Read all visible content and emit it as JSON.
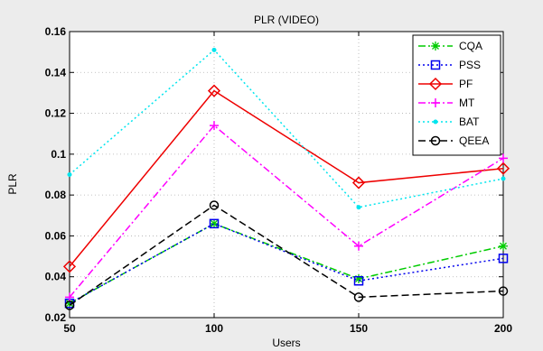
{
  "chart_data": {
    "type": "line",
    "title": "PLR (VIDEO)",
    "xlabel": "Users",
    "ylabel": "PLR",
    "x": [
      50,
      100,
      150,
      200
    ],
    "xlim": [
      50,
      200
    ],
    "ylim": [
      0.02,
      0.16
    ],
    "xticks": [
      "50",
      "100",
      "150",
      "200"
    ],
    "yticks": [
      "0.02",
      "0.04",
      "0.06",
      "0.08",
      "0.1",
      "0.12",
      "0.14",
      "0.16"
    ],
    "grid": true,
    "legend_position": "top-right",
    "series": [
      {
        "name": "CQA",
        "values": [
          0.027,
          0.066,
          0.039,
          0.055
        ],
        "color": "#00cc00",
        "dash": "8,3,2,3",
        "marker": "star"
      },
      {
        "name": "PSS",
        "values": [
          0.027,
          0.066,
          0.038,
          0.049
        ],
        "color": "#0000ee",
        "dash": "2,3",
        "marker": "square"
      },
      {
        "name": "PF",
        "values": [
          0.045,
          0.131,
          0.086,
          0.093
        ],
        "color": "#ee0000",
        "dash": "",
        "marker": "diamond"
      },
      {
        "name": "MT",
        "values": [
          0.03,
          0.114,
          0.055,
          0.098
        ],
        "color": "#ff00ff",
        "dash": "8,3,2,3",
        "marker": "plus"
      },
      {
        "name": "BAT",
        "values": [
          0.09,
          0.151,
          0.074,
          0.088
        ],
        "color": "#00e5ee",
        "dash": "2,3",
        "marker": "dot"
      },
      {
        "name": "QEEA",
        "values": [
          0.026,
          0.075,
          0.03,
          0.033
        ],
        "color": "#000000",
        "dash": "8,4",
        "marker": "circle"
      }
    ]
  }
}
